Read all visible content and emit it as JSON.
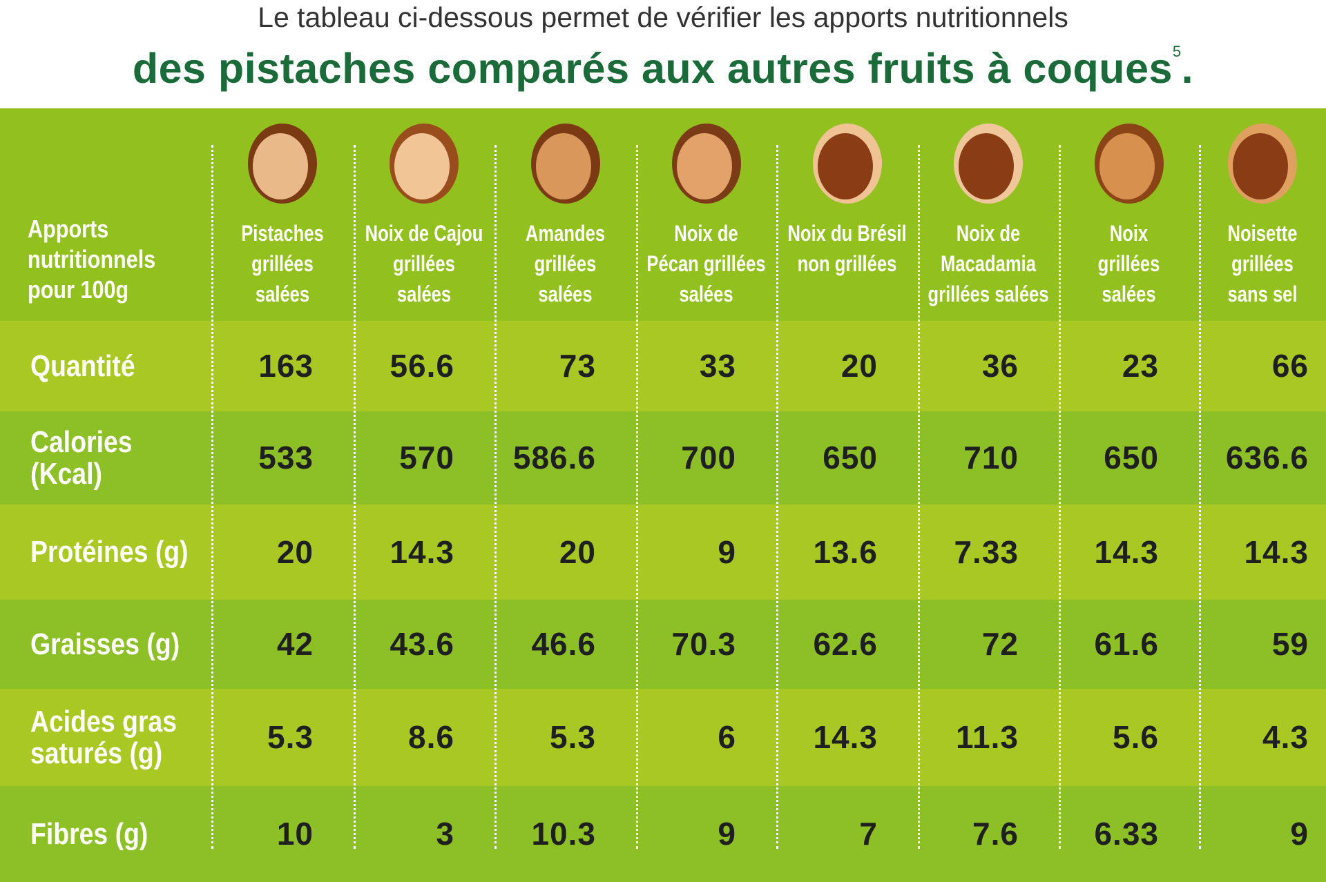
{
  "header": {
    "line1": "Le tableau ci-dessous permet de vérifier les apports nutritionnels",
    "line2": "des pistaches comparés aux autres fruits à coques",
    "footnote": "5",
    "period": "."
  },
  "table": {
    "corner": "Apports\nnutritionnels\npour 100g",
    "columns": [
      "Pistaches\ngrillées\nsalées",
      "Noix de Cajou\ngrillées\nsalées",
      "Amandes\ngrillées\nsalées",
      "Noix de\nPécan grillées\nsalées",
      "Noix du Brésil\nnon grillées",
      "Noix de\nMacadamia\ngrillées salées",
      "Noix\ngrillées\nsalées",
      "Noisette\ngrillées\nsans sel"
    ],
    "rows": [
      {
        "label": "Quantité",
        "values": [
          "163",
          "56.6",
          "73",
          "33",
          "20",
          "36",
          "23",
          "66"
        ]
      },
      {
        "label": "Calories\n(Kcal)",
        "values": [
          "533",
          "570",
          "586.6",
          "700",
          "650",
          "710",
          "650",
          "636.6"
        ]
      },
      {
        "label": "Protéines (g)",
        "values": [
          "20",
          "14.3",
          "20",
          "9",
          "13.6",
          "7.33",
          "14.3",
          "14.3"
        ]
      },
      {
        "label": "Graisses (g)",
        "values": [
          "42",
          "43.6",
          "46.6",
          "70.3",
          "62.6",
          "72",
          "61.6",
          "59"
        ]
      },
      {
        "label": "Acides gras\nsaturés (g)",
        "values": [
          "5.3",
          "8.6",
          "5.3",
          "6",
          "14.3",
          "11.3",
          "5.6",
          "4.3"
        ]
      },
      {
        "label": "Fibres (g)",
        "values": [
          "10",
          "3",
          "10.3",
          "9",
          "7",
          "7.6",
          "6.33",
          "9"
        ]
      }
    ]
  }
}
